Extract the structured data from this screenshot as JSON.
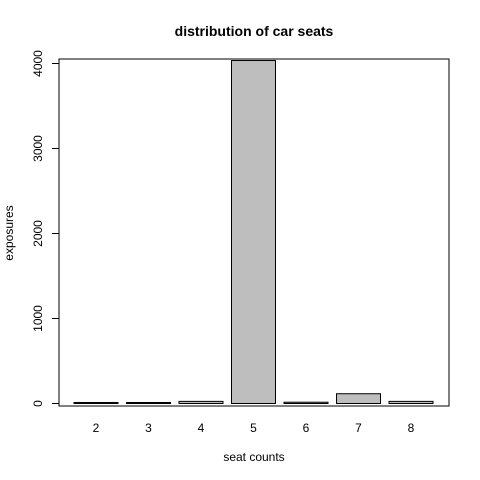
{
  "chart_data": {
    "type": "bar",
    "title": "distribution of car seats",
    "xlabel": "seat counts",
    "ylabel": "exposures",
    "categories": [
      "2",
      "3",
      "4",
      "5",
      "6",
      "7",
      "8"
    ],
    "values": [
      12,
      3,
      25,
      4035,
      15,
      115,
      25
    ],
    "ylim": [
      0,
      4040
    ],
    "yticks": [
      0,
      1000,
      2000,
      3000,
      4000
    ],
    "bar_fill": "#bebebe",
    "bar_stroke": "#000000",
    "grid": false,
    "legend": "none"
  }
}
